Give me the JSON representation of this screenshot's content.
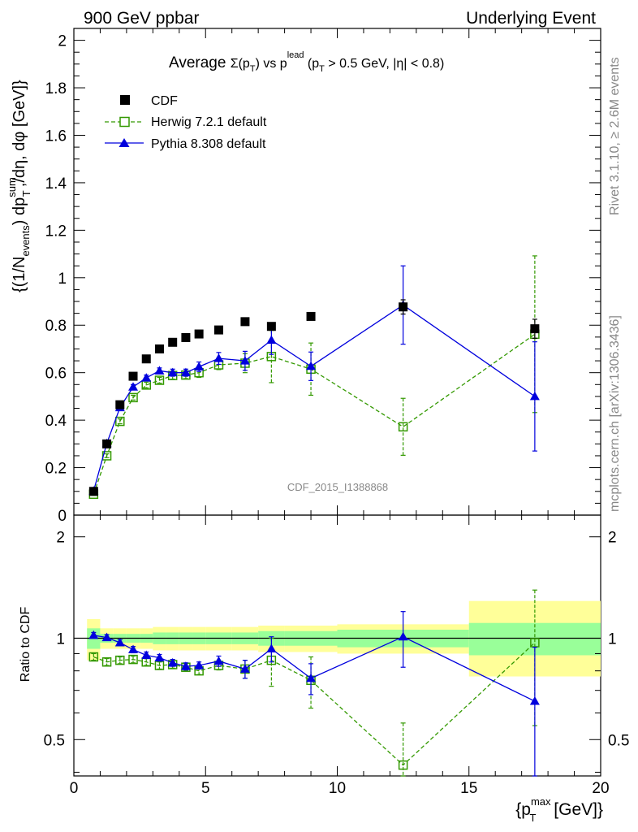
{
  "header": {
    "left": "900 GeV ppbar",
    "right": "Underlying Event"
  },
  "side": {
    "rivet": "Rivet 3.1.10, ≥ 2.6M events",
    "mcplots": "mcplots.cern.ch [arXiv:1306.3436]"
  },
  "chart_data": [
    {
      "type": "scatter",
      "panel": "main",
      "title_parts": {
        "pre": "Average ",
        "sigma": "Σ(p",
        "sub_T": "T",
        "mid": ") vs p",
        "sup_lead": "lead",
        "post": " (p",
        "post2": " > 0.5 GeV, |η| < 0.8)"
      },
      "ylabel": {
        "pre": "{(1/N",
        "sub_events": "events",
        "mid": ") dp",
        "sup_sum": "sum",
        "sub_T": "T",
        "post": ",/dη, dφ [GeV]}"
      },
      "watermark": "CDF_2015_I1388868",
      "xlim": [
        0,
        20
      ],
      "ylim": [
        0,
        2.05
      ],
      "x_ticks": [
        0,
        5,
        10,
        15,
        20
      ],
      "y_ticks": [
        0,
        0.2,
        0.4,
        0.6,
        0.8,
        1,
        1.2,
        1.4,
        1.6,
        1.8,
        2
      ],
      "y_tick_labels": [
        "0",
        "0.2",
        "0.4",
        "0.6",
        "0.8",
        "1",
        "1.2",
        "1.4",
        "1.6",
        "1.8",
        "2"
      ],
      "legend": {
        "placement": "top-left",
        "entries": [
          "CDF",
          "Herwig 7.2.1 default",
          "Pythia 8.308 default"
        ]
      },
      "series": [
        {
          "name": "CDF",
          "color": "#000000",
          "marker": "square-filled",
          "x": [
            0.75,
            1.25,
            1.75,
            2.25,
            2.75,
            3.25,
            3.75,
            4.25,
            4.75,
            5.5,
            6.5,
            7.5,
            9.0,
            12.5,
            17.5
          ],
          "y": [
            0.1,
            0.3,
            0.465,
            0.585,
            0.658,
            0.7,
            0.728,
            0.748,
            0.763,
            0.78,
            0.815,
            0.795,
            0.837,
            0.877,
            0.785
          ],
          "err": [
            0.005,
            0.005,
            0.008,
            0.008,
            0.008,
            0.008,
            0.008,
            0.008,
            0.008,
            0.009,
            0.01,
            0.012,
            0.015,
            0.03,
            0.04
          ]
        },
        {
          "name": "Herwig 7.2.1 default",
          "color": "#339900",
          "marker": "square-open",
          "line": "dashed",
          "x": [
            0.75,
            1.25,
            1.75,
            2.25,
            2.75,
            3.25,
            3.75,
            4.25,
            4.75,
            5.5,
            6.5,
            7.5,
            9.0,
            12.5,
            17.5
          ],
          "y": [
            0.088,
            0.25,
            0.395,
            0.495,
            0.548,
            0.568,
            0.588,
            0.59,
            0.6,
            0.633,
            0.64,
            0.668,
            0.615,
            0.372,
            0.762
          ],
          "err": [
            0.005,
            0.008,
            0.01,
            0.01,
            0.012,
            0.012,
            0.015,
            0.015,
            0.02,
            0.02,
            0.04,
            0.11,
            0.11,
            0.12,
            0.33
          ]
        },
        {
          "name": "Pythia 8.308 default",
          "color": "#0000dd",
          "marker": "triangle-filled",
          "line": "solid",
          "x": [
            0.75,
            1.25,
            1.75,
            2.25,
            2.75,
            3.25,
            3.75,
            4.25,
            4.75,
            5.5,
            6.5,
            7.5,
            9.0,
            12.5,
            17.5
          ],
          "y": [
            0.102,
            0.302,
            0.453,
            0.54,
            0.578,
            0.608,
            0.6,
            0.6,
            0.625,
            0.66,
            0.65,
            0.737,
            0.627,
            0.885,
            0.5
          ],
          "err": [
            0.005,
            0.008,
            0.01,
            0.01,
            0.012,
            0.012,
            0.015,
            0.015,
            0.02,
            0.025,
            0.04,
            0.06,
            0.06,
            0.165,
            0.23
          ]
        }
      ]
    },
    {
      "type": "scatter",
      "panel": "ratio",
      "ylabel": "Ratio to CDF",
      "xlabel": {
        "pre": "{p",
        "sup_max": "max",
        "sub_T": "T",
        "post": " [GeV]}"
      },
      "xlim": [
        0,
        20
      ],
      "ylim": [
        0.39,
        2.32
      ],
      "scale": "log",
      "x_ticks": [
        0,
        5,
        10,
        15,
        20
      ],
      "x_tick_labels": [
        "0",
        "5",
        "10",
        "15",
        "20"
      ],
      "y_ticks": [
        0.5,
        1,
        2
      ],
      "y_tick_labels": [
        "0.5",
        "1",
        "2"
      ],
      "bands": {
        "edges": [
          0.5,
          1.0,
          1.5,
          2.0,
          2.5,
          3.0,
          3.5,
          4.0,
          4.5,
          5.0,
          6.0,
          7.0,
          8.0,
          10.0,
          15.0,
          20.0
        ],
        "stat_lo": [
          0.93,
          0.97,
          0.97,
          0.97,
          0.97,
          0.96,
          0.96,
          0.96,
          0.96,
          0.96,
          0.96,
          0.95,
          0.95,
          0.94,
          0.89
        ],
        "stat_hi": [
          1.07,
          1.03,
          1.03,
          1.03,
          1.03,
          1.04,
          1.04,
          1.04,
          1.04,
          1.04,
          1.04,
          1.05,
          1.05,
          1.06,
          1.11
        ],
        "tot_lo": [
          0.86,
          0.93,
          0.93,
          0.93,
          0.93,
          0.92,
          0.92,
          0.92,
          0.92,
          0.92,
          0.92,
          0.91,
          0.91,
          0.9,
          0.77
        ],
        "tot_hi": [
          1.14,
          1.07,
          1.07,
          1.07,
          1.07,
          1.08,
          1.08,
          1.08,
          1.08,
          1.08,
          1.08,
          1.09,
          1.09,
          1.1,
          1.29
        ],
        "stat_color": "#99ff99",
        "tot_color": "#ffff99"
      },
      "series": [
        {
          "name": "Herwig 7.2.1 default",
          "color": "#339900",
          "marker": "square-open",
          "line": "dashed",
          "x": [
            0.75,
            1.25,
            1.75,
            2.25,
            2.75,
            3.25,
            3.75,
            4.25,
            4.75,
            5.5,
            6.5,
            7.5,
            9.0,
            12.5,
            17.5
          ],
          "y": [
            0.88,
            0.85,
            0.86,
            0.865,
            0.85,
            0.83,
            0.835,
            0.82,
            0.8,
            0.83,
            0.81,
            0.86,
            0.75,
            0.42,
            0.97
          ],
          "err": [
            0.02,
            0.02,
            0.02,
            0.02,
            0.02,
            0.02,
            0.02,
            0.02,
            0.02,
            0.025,
            0.05,
            0.14,
            0.13,
            0.14,
            0.42
          ]
        },
        {
          "name": "Pythia 8.308 default",
          "color": "#0000dd",
          "marker": "triangle-filled",
          "line": "solid",
          "x": [
            0.75,
            1.25,
            1.75,
            2.25,
            2.75,
            3.25,
            3.75,
            4.25,
            4.75,
            5.5,
            6.5,
            7.5,
            9.0,
            12.5,
            17.5
          ],
          "y": [
            1.02,
            1.005,
            0.97,
            0.925,
            0.89,
            0.875,
            0.845,
            0.825,
            0.83,
            0.855,
            0.81,
            0.93,
            0.76,
            1.01,
            0.65
          ],
          "err": [
            0.02,
            0.02,
            0.02,
            0.02,
            0.02,
            0.02,
            0.02,
            0.02,
            0.02,
            0.03,
            0.05,
            0.08,
            0.08,
            0.19,
            0.29
          ]
        }
      ]
    }
  ]
}
